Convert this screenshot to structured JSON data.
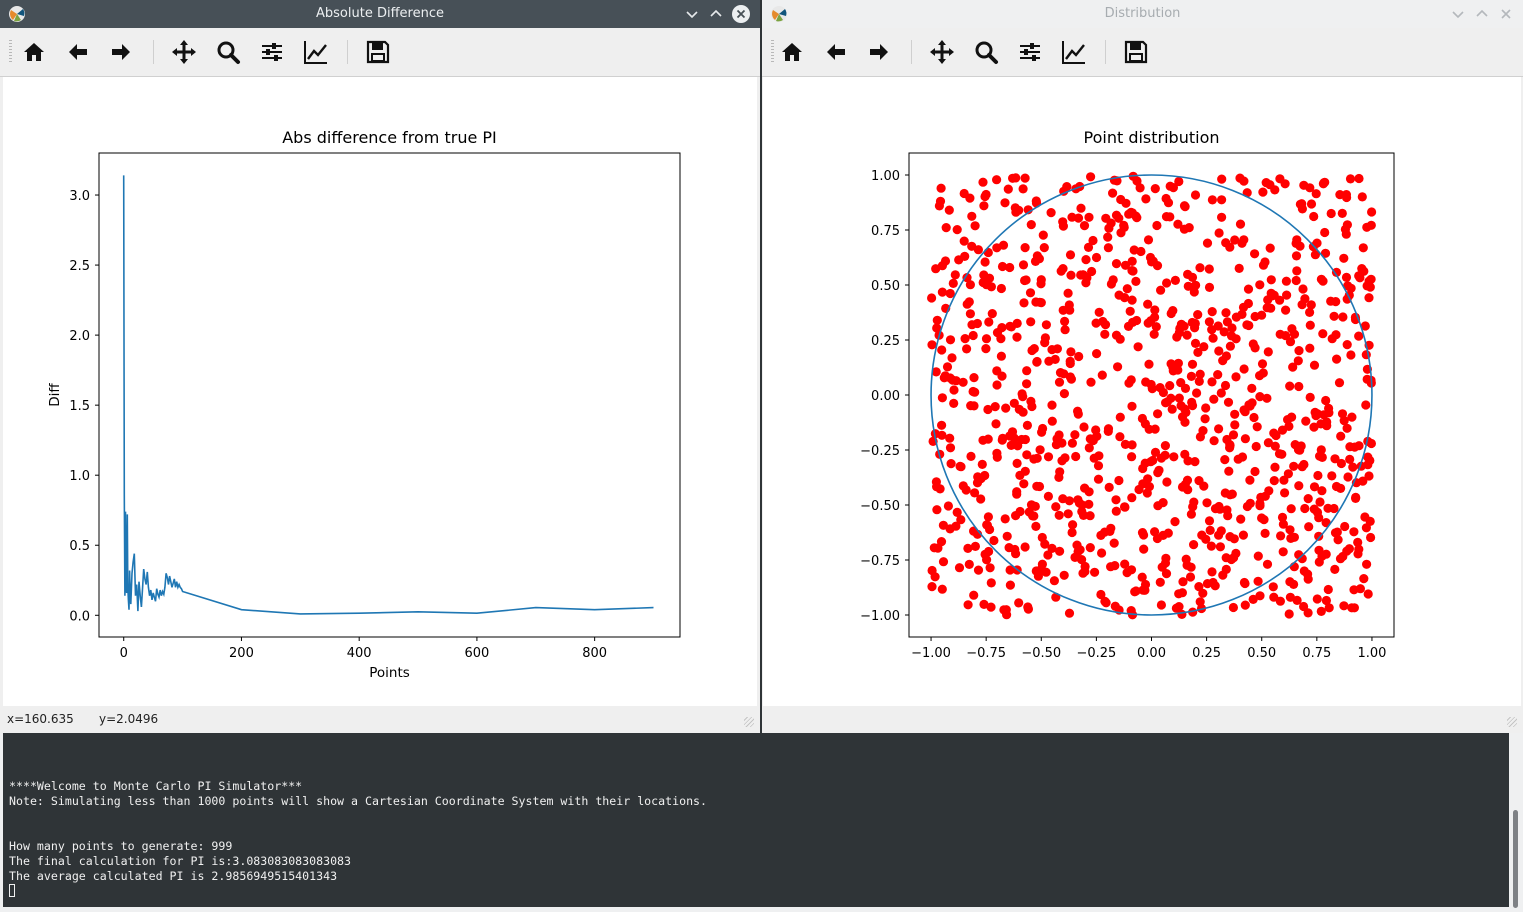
{
  "window_left": {
    "title": "Absolute Difference",
    "status": {
      "x_readout": "x=160.635",
      "y_readout": "y=2.0496"
    }
  },
  "window_right": {
    "title": "Distribution"
  },
  "toolbar_icons": [
    "home-icon",
    "back-arrow-icon",
    "forward-arrow-icon",
    "pan-icon",
    "zoom-icon",
    "configure-subplots-icon",
    "edit-axis-icon",
    "save-icon"
  ],
  "window_controls": [
    "minimize-icon",
    "maximize-icon",
    "close-icon"
  ],
  "colors": {
    "line": "#1f77b4",
    "points": "#ff0000",
    "circle": "#1f77b4",
    "active_titlebar": "#475057",
    "terminal_bg": "#2f3437"
  },
  "chart_data": [
    {
      "type": "line",
      "title": "Abs difference from true PI",
      "xlabel": "Points",
      "ylabel": "Diff",
      "xlim": [
        -42,
        945
      ],
      "ylim": [
        -0.155,
        3.3
      ],
      "xticks": [
        0,
        200,
        400,
        600,
        800
      ],
      "xtick_labels": [
        "0",
        "200",
        "400",
        "600",
        "800"
      ],
      "yticks": [
        0.0,
        0.5,
        1.0,
        1.5,
        2.0,
        2.5,
        3.0
      ],
      "ytick_labels": [
        "0.0",
        "0.5",
        "1.0",
        "1.5",
        "2.0",
        "2.5",
        "3.0"
      ],
      "series": [
        {
          "x": [
            0,
            1,
            2,
            3,
            4,
            5,
            6,
            7,
            8,
            9,
            10,
            11,
            12,
            14,
            16,
            18,
            20,
            22,
            24,
            26,
            28,
            30,
            32,
            34,
            36,
            38,
            40,
            42,
            44,
            46,
            48,
            50,
            52,
            54,
            56,
            58,
            60,
            62,
            64,
            66,
            68,
            70,
            72,
            74,
            76,
            78,
            80,
            82,
            84,
            86,
            88,
            90,
            92,
            94,
            96,
            98,
            100,
            200,
            300,
            400,
            500,
            600,
            700,
            800,
            900
          ],
          "y": [
            3.14,
            0.86,
            0.14,
            0.74,
            0.18,
            0.16,
            0.72,
            0.2,
            0.11,
            0.04,
            0.32,
            0.16,
            0.08,
            0.3,
            0.38,
            0.44,
            0.14,
            0.22,
            0.03,
            0.24,
            0.14,
            0.06,
            0.2,
            0.33,
            0.26,
            0.22,
            0.31,
            0.2,
            0.14,
            0.18,
            0.11,
            0.16,
            0.13,
            0.1,
            0.19,
            0.15,
            0.13,
            0.18,
            0.14,
            0.17,
            0.15,
            0.2,
            0.3,
            0.27,
            0.22,
            0.28,
            0.24,
            0.2,
            0.23,
            0.26,
            0.2,
            0.24,
            0.2,
            0.22,
            0.2,
            0.19,
            0.17,
            0.04,
            0.01,
            0.015,
            0.025,
            0.015,
            0.055,
            0.04,
            0.055
          ]
        }
      ]
    },
    {
      "type": "scatter",
      "title": "Point distribution",
      "xlim": [
        -1.1,
        1.1
      ],
      "ylim": [
        -1.1,
        1.1
      ],
      "xticks": [
        -1.0,
        -0.75,
        -0.5,
        -0.25,
        0.0,
        0.25,
        0.5,
        0.75,
        1.0
      ],
      "xtick_labels": [
        "−1.00",
        "−0.75",
        "−0.50",
        "−0.25",
        "0.00",
        "0.25",
        "0.50",
        "0.75",
        "1.00"
      ],
      "yticks": [
        1.0,
        0.75,
        0.5,
        0.25,
        0.0,
        -0.25,
        -0.5,
        -0.75,
        -1.0
      ],
      "ytick_labels": [
        "1.00",
        "0.75",
        "0.50",
        "0.25",
        "0.00",
        "−0.25",
        "−0.50",
        "−0.75",
        "−1.00"
      ],
      "circle": {
        "center": [
          0,
          0
        ],
        "radius": 1
      },
      "point_count": 999,
      "points_note": "999 uniformly distributed random points in [-1,1]×[-1,1]"
    }
  ],
  "terminal": {
    "lines": [
      "****Welcome to Monte Carlo PI Simulator***",
      "Note: Simulating less than 1000 points will show a Cartesian Coordinate System with their locations.",
      "",
      "",
      "How many points to generate: 999",
      "The final calculation for PI is:3.083083083083083",
      "The average calculated PI is 2.9856949515401343"
    ]
  }
}
